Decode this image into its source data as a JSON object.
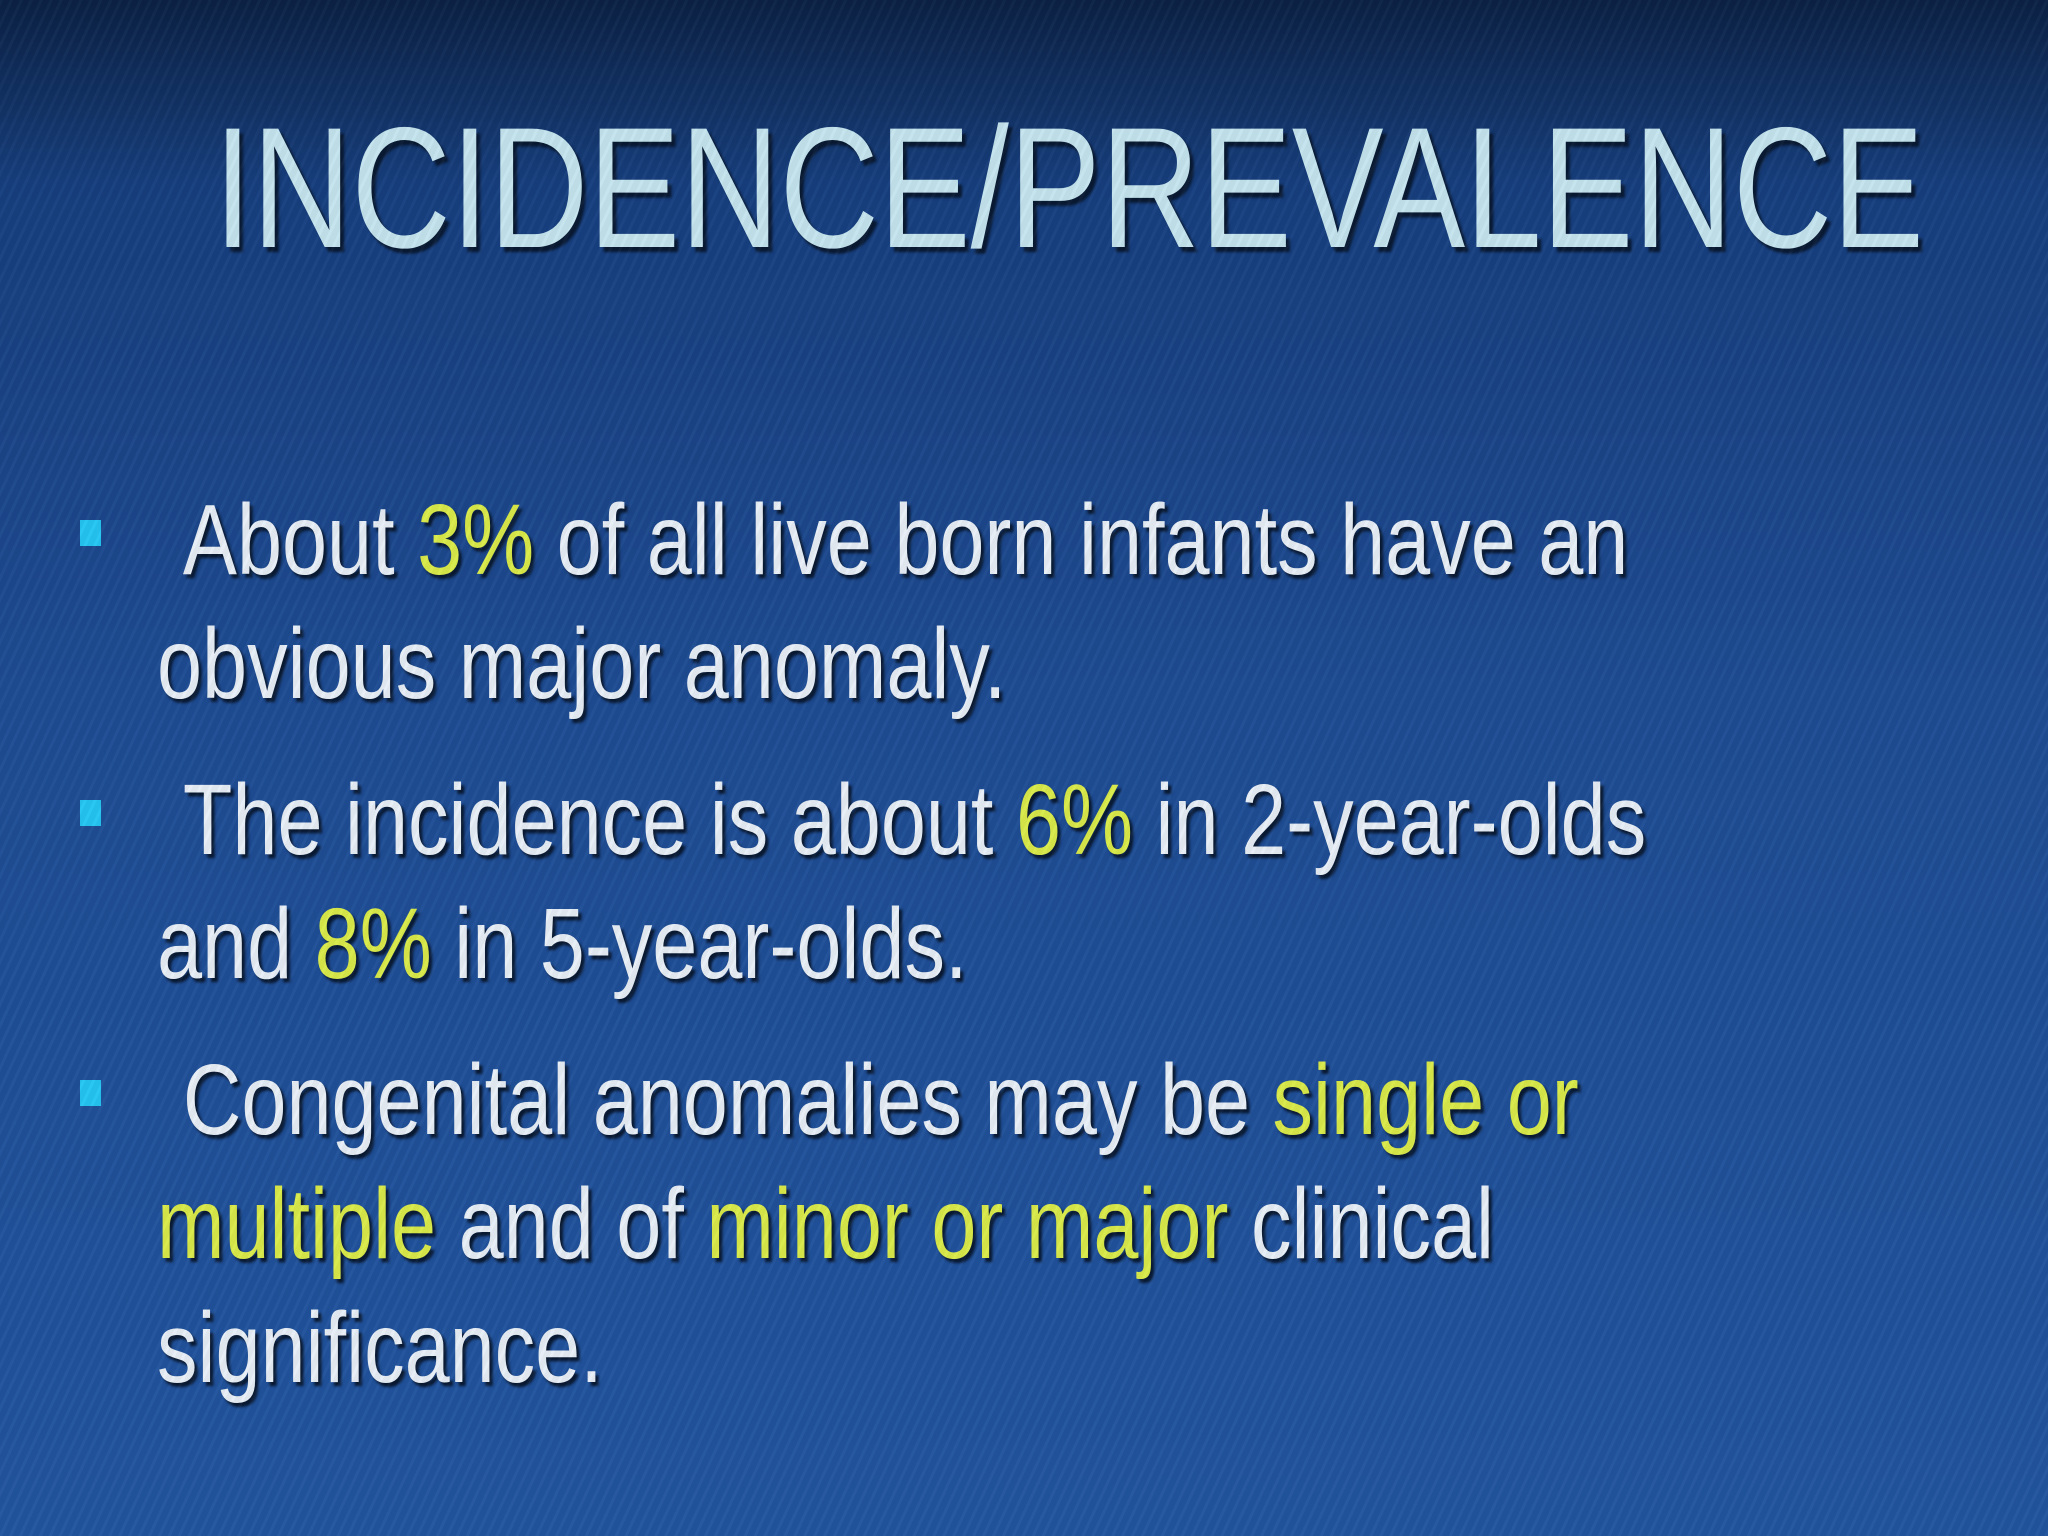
{
  "title": "INCIDENCE/PREVALENCE",
  "bullets": [
    {
      "lines": [
        [
          {
            "text": "About ",
            "highlight": false
          },
          {
            "text": "3%",
            "highlight": true
          },
          {
            "text": " of all live born infants have an",
            "highlight": false
          }
        ],
        [
          {
            "text": "obvious major anomaly.",
            "highlight": false
          }
        ]
      ]
    },
    {
      "lines": [
        [
          {
            "text": "The incidence is about ",
            "highlight": false
          },
          {
            "text": "6%",
            "highlight": true
          },
          {
            "text": " in 2-year-olds",
            "highlight": false
          }
        ],
        [
          {
            "text": "and ",
            "highlight": false
          },
          {
            "text": "8%",
            "highlight": true
          },
          {
            "text": " in 5-year-olds.",
            "highlight": false
          }
        ]
      ]
    },
    {
      "lines": [
        [
          {
            "text": "Congenital anomalies may be ",
            "highlight": false
          },
          {
            "text": "single or",
            "highlight": true
          }
        ],
        [
          {
            "text": "multiple",
            "highlight": true
          },
          {
            "text": " and of ",
            "highlight": false
          },
          {
            "text": "minor or major",
            "highlight": true
          },
          {
            "text": " clinical",
            "highlight": false
          }
        ],
        [
          {
            "text": "significance.",
            "highlight": false
          }
        ]
      ]
    }
  ]
}
